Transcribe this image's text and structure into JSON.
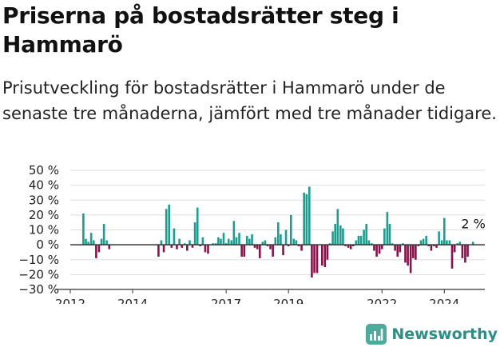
{
  "title": "Priserna på bostadsrätter steg i Hammarö",
  "subtitle": "Prisutveckling för bostadsrätter i Hammarö under de senaste tre månaderna, jämfört med tre månader tidigare.",
  "brand": {
    "name": "Newsworthy",
    "icon": "newsworthy-logo-icon"
  },
  "colors": {
    "positive": "#1a9e8f",
    "negative": "#8e0f4a",
    "grid": "#dddddd",
    "baseline": "#333333",
    "brand": "#2a8f86"
  },
  "chart_data": {
    "type": "bar",
    "title": "",
    "xlabel": "",
    "ylabel": "",
    "ylim": [
      -30,
      50
    ],
    "yticks": [
      -30,
      -20,
      -10,
      0,
      10,
      20,
      30,
      40,
      50
    ],
    "ytick_labels": [
      "−30 %",
      "−20 %",
      "−10 %",
      "0 %",
      "10 %",
      "20 %",
      "30 %",
      "40 %",
      "50 %"
    ],
    "xlim": [
      2012.0,
      2025.3
    ],
    "xticks": [
      2012,
      2014,
      2017,
      2019,
      2022,
      2024
    ],
    "xtick_labels": [
      "2012",
      "2014",
      "2017",
      "2019",
      "2022",
      "2024"
    ],
    "grid": true,
    "annotation": {
      "text": "2 %",
      "x": 2024.9,
      "y": 2
    },
    "points": [
      [
        2012.42,
        21
      ],
      [
        2012.5,
        4
      ],
      [
        2012.58,
        2
      ],
      [
        2012.67,
        8
      ],
      [
        2012.75,
        3
      ],
      [
        2012.83,
        -9
      ],
      [
        2012.92,
        -5
      ],
      [
        2013.0,
        4
      ],
      [
        2013.08,
        14
      ],
      [
        2013.17,
        3
      ],
      [
        2013.25,
        -3
      ],
      [
        2014.83,
        -8
      ],
      [
        2014.92,
        3
      ],
      [
        2015.0,
        -5
      ],
      [
        2015.08,
        24
      ],
      [
        2015.17,
        27
      ],
      [
        2015.25,
        -2
      ],
      [
        2015.33,
        11
      ],
      [
        2015.42,
        -3
      ],
      [
        2015.5,
        4
      ],
      [
        2015.58,
        -2
      ],
      [
        2015.67,
        1
      ],
      [
        2015.75,
        -4
      ],
      [
        2015.83,
        3
      ],
      [
        2015.92,
        -2
      ],
      [
        2016.0,
        15
      ],
      [
        2016.08,
        25
      ],
      [
        2016.17,
        -1
      ],
      [
        2016.25,
        5
      ],
      [
        2016.33,
        -5
      ],
      [
        2016.42,
        -6
      ],
      [
        2016.58,
        1
      ],
      [
        2016.67,
        1
      ],
      [
        2016.75,
        5
      ],
      [
        2016.83,
        4
      ],
      [
        2016.92,
        8
      ],
      [
        2017.0,
        1
      ],
      [
        2017.08,
        4
      ],
      [
        2017.17,
        3
      ],
      [
        2017.25,
        16
      ],
      [
        2017.33,
        5
      ],
      [
        2017.42,
        8
      ],
      [
        2017.5,
        -8
      ],
      [
        2017.58,
        -8
      ],
      [
        2017.67,
        6
      ],
      [
        2017.75,
        4
      ],
      [
        2017.83,
        7
      ],
      [
        2017.92,
        -2
      ],
      [
        2018.0,
        -3
      ],
      [
        2018.08,
        -9
      ],
      [
        2018.17,
        2
      ],
      [
        2018.25,
        3
      ],
      [
        2018.33,
        -1
      ],
      [
        2018.42,
        -3
      ],
      [
        2018.5,
        -8
      ],
      [
        2018.58,
        5
      ],
      [
        2018.67,
        15
      ],
      [
        2018.75,
        7
      ],
      [
        2018.83,
        -7
      ],
      [
        2018.92,
        10
      ],
      [
        2019.0,
        -1
      ],
      [
        2019.08,
        20
      ],
      [
        2019.17,
        4
      ],
      [
        2019.25,
        3
      ],
      [
        2019.33,
        -1
      ],
      [
        2019.42,
        -4
      ],
      [
        2019.5,
        35
      ],
      [
        2019.58,
        34
      ],
      [
        2019.67,
        39
      ],
      [
        2019.75,
        -22
      ],
      [
        2019.83,
        -19
      ],
      [
        2019.92,
        -19
      ],
      [
        2020.08,
        -14
      ],
      [
        2020.17,
        -15
      ],
      [
        2020.25,
        -10
      ],
      [
        2020.33,
        1
      ],
      [
        2020.42,
        9
      ],
      [
        2020.5,
        14
      ],
      [
        2020.58,
        24
      ],
      [
        2020.67,
        13
      ],
      [
        2020.75,
        11
      ],
      [
        2020.83,
        -1
      ],
      [
        2020.92,
        -2
      ],
      [
        2021.0,
        -3
      ],
      [
        2021.08,
        -1
      ],
      [
        2021.17,
        3
      ],
      [
        2021.25,
        6
      ],
      [
        2021.33,
        6
      ],
      [
        2021.42,
        10
      ],
      [
        2021.5,
        14
      ],
      [
        2021.58,
        3
      ],
      [
        2021.67,
        1
      ],
      [
        2021.75,
        -4
      ],
      [
        2021.83,
        -8
      ],
      [
        2021.92,
        -6
      ],
      [
        2022.0,
        -3
      ],
      [
        2022.08,
        11
      ],
      [
        2022.17,
        22
      ],
      [
        2022.25,
        14
      ],
      [
        2022.33,
        1
      ],
      [
        2022.42,
        -4
      ],
      [
        2022.5,
        -8
      ],
      [
        2022.58,
        -5
      ],
      [
        2022.67,
        1
      ],
      [
        2022.75,
        -12
      ],
      [
        2022.83,
        -14
      ],
      [
        2022.92,
        -19
      ],
      [
        2023.0,
        -9
      ],
      [
        2023.08,
        -10
      ],
      [
        2023.17,
        -1
      ],
      [
        2023.25,
        3
      ],
      [
        2023.33,
        4
      ],
      [
        2023.42,
        6
      ],
      [
        2023.5,
        -1
      ],
      [
        2023.58,
        -4
      ],
      [
        2023.67,
        -1
      ],
      [
        2023.75,
        -2
      ],
      [
        2023.83,
        9
      ],
      [
        2023.92,
        3
      ],
      [
        2024.0,
        18
      ],
      [
        2024.08,
        3
      ],
      [
        2024.17,
        3
      ],
      [
        2024.25,
        -16
      ],
      [
        2024.33,
        -5
      ],
      [
        2024.42,
        1
      ],
      [
        2024.5,
        2
      ],
      [
        2024.58,
        -9
      ],
      [
        2024.67,
        -12
      ],
      [
        2024.75,
        -8
      ],
      [
        2024.83,
        0
      ],
      [
        2024.92,
        2
      ]
    ]
  }
}
